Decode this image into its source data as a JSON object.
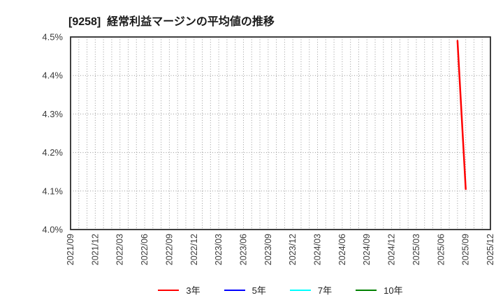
{
  "chart_data": {
    "type": "line",
    "title": "[9258]  経常利益マージンの平均値の推移",
    "x_start": "2021/09",
    "x_end": "2025/12",
    "x_tick_labels": [
      "2021/09",
      "2021/12",
      "2022/03",
      "2022/06",
      "2022/09",
      "2022/12",
      "2023/03",
      "2023/06",
      "2023/09",
      "2023/12",
      "2024/03",
      "2024/06",
      "2024/09",
      "2024/12",
      "2025/03",
      "2025/06",
      "2025/09",
      "2025/12"
    ],
    "ylim": [
      4.0,
      4.5
    ],
    "y_ticks": [
      {
        "value": 4.0,
        "label": "4.0%"
      },
      {
        "value": 4.1,
        "label": "4.1%"
      },
      {
        "value": 4.2,
        "label": "4.2%"
      },
      {
        "value": 4.3,
        "label": "4.3%"
      },
      {
        "value": 4.4,
        "label": "4.4%"
      },
      {
        "value": 4.5,
        "label": "4.5%"
      }
    ],
    "grid": {
      "vertical": "monthly",
      "style": "dotted",
      "color": "#999999"
    },
    "legend_position": "bottom",
    "series": [
      {
        "name": "3年",
        "color": "#ff0000",
        "points": [
          {
            "x": "2025/08",
            "y": 4.49
          },
          {
            "x": "2025/09",
            "y": 4.105
          }
        ]
      },
      {
        "name": "5年",
        "color": "#0000ff",
        "points": []
      },
      {
        "name": "7年",
        "color": "#00ffff",
        "points": []
      },
      {
        "name": "10年",
        "color": "#008000",
        "points": []
      }
    ]
  }
}
